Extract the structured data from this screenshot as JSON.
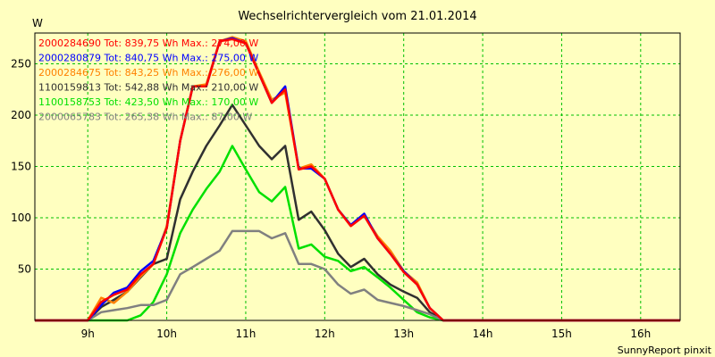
{
  "chart_data": {
    "type": "line",
    "title": "Wechselrichtervergleich vom 21.01.2014",
    "ylabel": "W",
    "xlabel": "",
    "footer": "SunnyReport pinxit",
    "x_ticks": [
      "9h",
      "10h",
      "11h",
      "12h",
      "13h",
      "14h",
      "15h",
      "16h"
    ],
    "y_ticks": [
      50,
      100,
      150,
      200,
      250
    ],
    "xlim": [
      8.33,
      16.5
    ],
    "ylim": [
      0,
      280
    ],
    "grid": true,
    "legend_placement": "top-left",
    "x": [
      8.33,
      8.5,
      8.67,
      8.83,
      9.0,
      9.17,
      9.33,
      9.5,
      9.67,
      9.83,
      10.0,
      10.17,
      10.33,
      10.5,
      10.67,
      10.83,
      11.0,
      11.17,
      11.33,
      11.5,
      11.67,
      11.83,
      12.0,
      12.17,
      12.33,
      12.5,
      12.67,
      12.83,
      13.0,
      13.17,
      13.33,
      13.5,
      13.67,
      13.83,
      14.0,
      14.17,
      14.33,
      14.5,
      14.67,
      14.83,
      15.0,
      15.17,
      15.33,
      15.5,
      15.67,
      15.83,
      16.0,
      16.17,
      16.33,
      16.5
    ],
    "series": [
      {
        "name": "2000284690 Tot: 839,75 Wh Max.: 274,00 W",
        "color": "#ff0000",
        "values": [
          0,
          0,
          0,
          0,
          0,
          18,
          25,
          30,
          45,
          55,
          90,
          175,
          228,
          228,
          272,
          274,
          270,
          240,
          212,
          225,
          147,
          150,
          138,
          108,
          92,
          102,
          80,
          65,
          47,
          35,
          12,
          0,
          0,
          0,
          0,
          0,
          0,
          0,
          0,
          0,
          0,
          0,
          0,
          0,
          0,
          0,
          0,
          0,
          0,
          0
        ]
      },
      {
        "name": "2000280879 Tot: 840,75 Wh Max.: 275,00 W",
        "color": "#0000ff",
        "values": [
          0,
          0,
          0,
          0,
          0,
          15,
          27,
          32,
          48,
          58,
          90,
          175,
          228,
          228,
          272,
          275,
          270,
          240,
          212,
          228,
          148,
          148,
          138,
          108,
          93,
          104,
          80,
          65,
          48,
          35,
          12,
          0,
          0,
          0,
          0,
          0,
          0,
          0,
          0,
          0,
          0,
          0,
          0,
          0,
          0,
          0,
          0,
          0,
          0,
          0
        ]
      },
      {
        "name": "2000284675 Tot: 843,25 Wh Max.: 276,00 W",
        "color": "#ff8000",
        "values": [
          0,
          0,
          0,
          0,
          0,
          22,
          17,
          28,
          43,
          55,
          92,
          175,
          228,
          230,
          272,
          276,
          272,
          242,
          215,
          222,
          148,
          152,
          138,
          108,
          92,
          102,
          82,
          68,
          48,
          37,
          12,
          0,
          0,
          0,
          0,
          0,
          0,
          0,
          0,
          0,
          0,
          0,
          0,
          0,
          0,
          0,
          0,
          0,
          0,
          0
        ]
      },
      {
        "name": "1100159813 Tot: 542,88 Wh Max.: 210,00 W",
        "color": "#303030",
        "values": [
          0,
          0,
          0,
          0,
          0,
          13,
          20,
          28,
          42,
          55,
          60,
          118,
          145,
          170,
          190,
          210,
          190,
          170,
          157,
          170,
          98,
          106,
          88,
          65,
          52,
          60,
          45,
          35,
          28,
          22,
          8,
          0,
          0,
          0,
          0,
          0,
          0,
          0,
          0,
          0,
          0,
          0,
          0,
          0,
          0,
          0,
          0,
          0,
          0,
          0
        ]
      },
      {
        "name": "1100158753 Tot: 423,50 Wh Max.: 170,00 W",
        "color": "#00e000",
        "values": [
          0,
          0,
          0,
          0,
          0,
          0,
          0,
          0,
          5,
          18,
          45,
          85,
          108,
          128,
          145,
          170,
          147,
          125,
          116,
          130,
          70,
          74,
          62,
          58,
          48,
          52,
          42,
          32,
          20,
          8,
          3,
          0,
          0,
          0,
          0,
          0,
          0,
          0,
          0,
          0,
          0,
          0,
          0,
          0,
          0,
          0,
          0,
          0,
          0,
          0
        ]
      },
      {
        "name": "2000065783 Tot: 265,38 Wh Max.: 87,00 W",
        "color": "#808080",
        "values": [
          0,
          0,
          0,
          0,
          0,
          8,
          10,
          12,
          15,
          15,
          20,
          45,
          52,
          60,
          68,
          87,
          87,
          87,
          80,
          85,
          55,
          55,
          50,
          35,
          26,
          30,
          20,
          17,
          14,
          10,
          6,
          0,
          0,
          0,
          0,
          0,
          0,
          0,
          0,
          0,
          0,
          0,
          0,
          0,
          0,
          0,
          0,
          0,
          0,
          0
        ]
      }
    ]
  }
}
